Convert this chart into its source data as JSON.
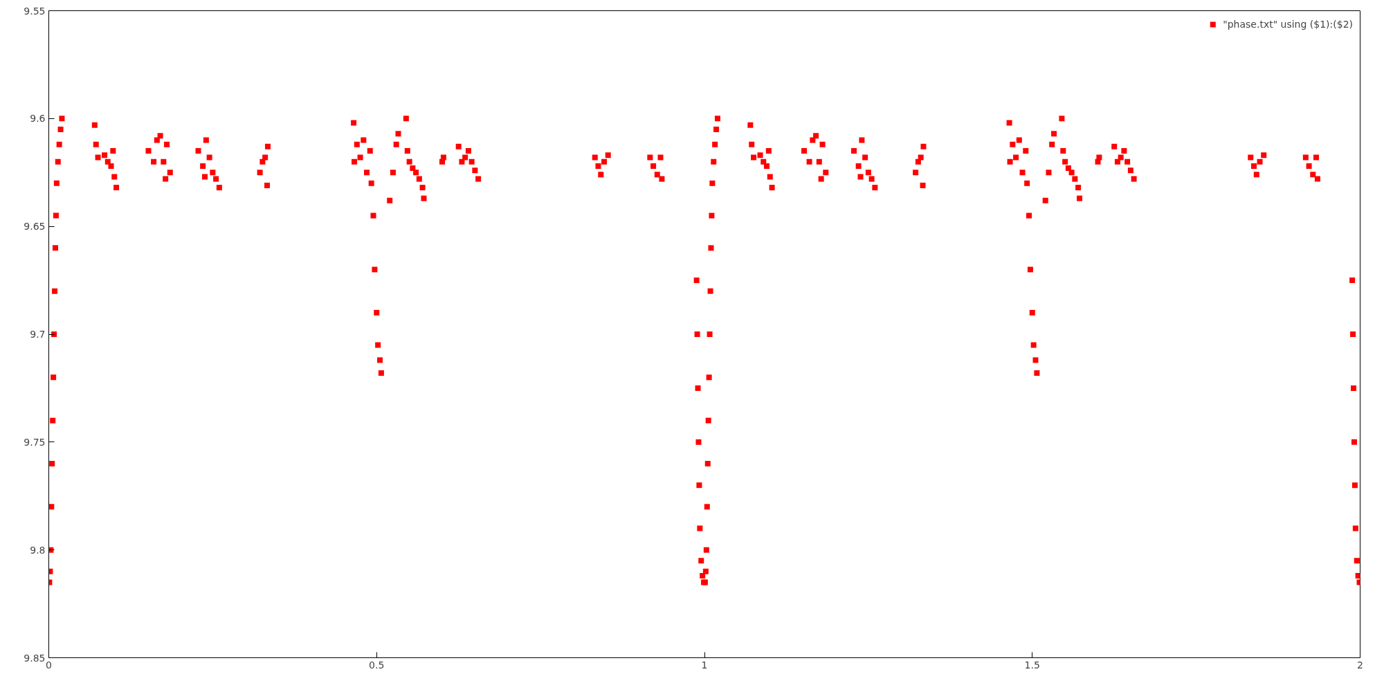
{
  "chart_data": {
    "type": "scatter",
    "marker": "square",
    "legend": "top right",
    "grid": false,
    "xlim": [
      0,
      2
    ],
    "xticks": [
      0,
      0.5,
      1,
      1.5,
      2
    ],
    "ylim": [
      9.85,
      9.55
    ],
    "yticks": [
      9.55,
      9.6,
      9.65,
      9.7,
      9.75,
      9.8,
      9.85
    ],
    "series": [
      {
        "name": "\"phase.txt\" using ($1):($2)",
        "color": "#ff0000",
        "x": [
          0.001,
          0.002,
          0.003,
          0.004,
          0.005,
          0.006,
          0.007,
          0.008,
          0.009,
          0.01,
          0.011,
          0.012,
          0.014,
          0.016,
          0.018,
          0.02,
          0.07,
          0.072,
          0.075,
          0.085,
          0.09,
          0.095,
          0.098,
          0.1,
          0.103,
          0.152,
          0.16,
          0.165,
          0.17,
          0.175,
          0.178,
          0.18,
          0.185,
          0.228,
          0.235,
          0.238,
          0.24,
          0.245,
          0.25,
          0.255,
          0.26,
          0.322,
          0.326,
          0.33,
          0.333,
          0.334,
          0.465,
          0.466,
          0.47,
          0.475,
          0.48,
          0.485,
          0.49,
          0.492,
          0.495,
          0.497,
          0.5,
          0.502,
          0.505,
          0.507,
          0.52,
          0.525,
          0.53,
          0.533,
          0.545,
          0.547,
          0.55,
          0.555,
          0.56,
          0.565,
          0.57,
          0.572,
          0.6,
          0.602,
          0.625,
          0.63,
          0.635,
          0.64,
          0.645,
          0.65,
          0.655,
          0.833,
          0.838,
          0.842,
          0.847,
          0.853,
          0.917,
          0.922,
          0.928,
          0.933,
          0.935,
          0.988,
          0.989,
          0.99,
          0.991,
          0.992,
          0.993,
          0.995,
          0.997,
          0.999,
          1.001,
          1.002,
          1.003,
          1.004,
          1.005,
          1.006,
          1.007,
          1.008,
          1.009,
          1.01,
          1.011,
          1.012,
          1.014,
          1.016,
          1.018,
          1.02,
          1.07,
          1.072,
          1.075,
          1.085,
          1.09,
          1.095,
          1.098,
          1.1,
          1.103,
          1.152,
          1.16,
          1.165,
          1.17,
          1.175,
          1.178,
          1.18,
          1.185,
          1.228,
          1.235,
          1.238,
          1.24,
          1.245,
          1.25,
          1.255,
          1.26,
          1.322,
          1.326,
          1.33,
          1.333,
          1.334,
          1.465,
          1.466,
          1.47,
          1.475,
          1.48,
          1.485,
          1.49,
          1.492,
          1.495,
          1.497,
          1.5,
          1.502,
          1.505,
          1.507,
          1.52,
          1.525,
          1.53,
          1.533,
          1.545,
          1.547,
          1.55,
          1.555,
          1.56,
          1.565,
          1.57,
          1.572,
          1.6,
          1.602,
          1.625,
          1.63,
          1.635,
          1.64,
          1.645,
          1.65,
          1.655,
          1.833,
          1.838,
          1.842,
          1.847,
          1.853,
          1.917,
          1.922,
          1.928,
          1.933,
          1.935,
          1.988,
          1.989,
          1.99,
          1.991,
          1.992,
          1.993,
          1.995,
          1.997,
          1.999
        ],
        "values": [
          9.815,
          9.81,
          9.8,
          9.78,
          9.76,
          9.74,
          9.72,
          9.7,
          9.68,
          9.66,
          9.645,
          9.63,
          9.62,
          9.612,
          9.605,
          9.6,
          9.603,
          9.612,
          9.618,
          9.617,
          9.62,
          9.622,
          9.615,
          9.627,
          9.632,
          9.615,
          9.62,
          9.61,
          9.608,
          9.62,
          9.628,
          9.612,
          9.625,
          9.615,
          9.622,
          9.627,
          9.61,
          9.618,
          9.625,
          9.628,
          9.632,
          9.625,
          9.62,
          9.618,
          9.631,
          9.613,
          9.602,
          9.62,
          9.612,
          9.618,
          9.61,
          9.625,
          9.615,
          9.63,
          9.645,
          9.67,
          9.69,
          9.705,
          9.712,
          9.718,
          9.638,
          9.625,
          9.612,
          9.607,
          9.6,
          9.615,
          9.62,
          9.623,
          9.625,
          9.628,
          9.632,
          9.637,
          9.62,
          9.618,
          9.613,
          9.62,
          9.618,
          9.615,
          9.62,
          9.624,
          9.628,
          9.618,
          9.622,
          9.626,
          9.62,
          9.617,
          9.618,
          9.622,
          9.626,
          9.618,
          9.628,
          9.675,
          9.7,
          9.725,
          9.75,
          9.77,
          9.79,
          9.805,
          9.812,
          9.815,
          9.815,
          9.81,
          9.8,
          9.78,
          9.76,
          9.74,
          9.72,
          9.7,
          9.68,
          9.66,
          9.645,
          9.63,
          9.62,
          9.612,
          9.605,
          9.6,
          9.603,
          9.612,
          9.618,
          9.617,
          9.62,
          9.622,
          9.615,
          9.627,
          9.632,
          9.615,
          9.62,
          9.61,
          9.608,
          9.62,
          9.628,
          9.612,
          9.625,
          9.615,
          9.622,
          9.627,
          9.61,
          9.618,
          9.625,
          9.628,
          9.632,
          9.625,
          9.62,
          9.618,
          9.631,
          9.613,
          9.602,
          9.62,
          9.612,
          9.618,
          9.61,
          9.625,
          9.615,
          9.63,
          9.645,
          9.67,
          9.69,
          9.705,
          9.712,
          9.718,
          9.638,
          9.625,
          9.612,
          9.607,
          9.6,
          9.615,
          9.62,
          9.623,
          9.625,
          9.628,
          9.632,
          9.637,
          9.62,
          9.618,
          9.613,
          9.62,
          9.618,
          9.615,
          9.62,
          9.624,
          9.628,
          9.618,
          9.622,
          9.626,
          9.62,
          9.617,
          9.618,
          9.622,
          9.626,
          9.618,
          9.628,
          9.675,
          9.7,
          9.725,
          9.75,
          9.77,
          9.79,
          9.805,
          9.812,
          9.815
        ]
      }
    ]
  }
}
